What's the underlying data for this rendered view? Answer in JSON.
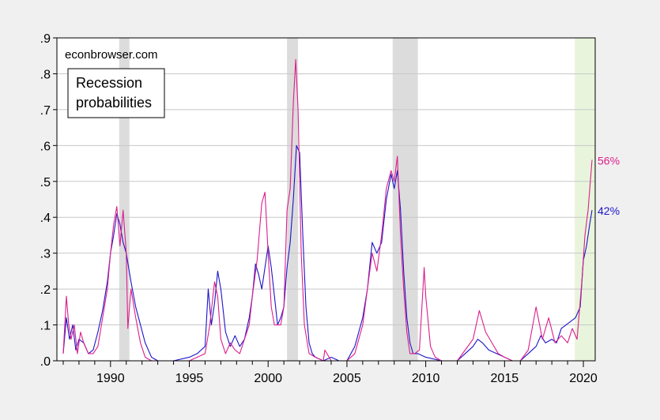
{
  "chart_data": {
    "type": "line",
    "title": "",
    "xlabel": "",
    "ylabel": "",
    "xlim": [
      1986.6,
      2020.75
    ],
    "ylim": [
      0,
      0.9
    ],
    "y_ticks": [
      ".0",
      ".1",
      ".2",
      ".3",
      ".4",
      ".5",
      ".6",
      ".7",
      ".8",
      ".9"
    ],
    "y_tick_values": [
      0,
      0.1,
      0.2,
      0.3,
      0.4,
      0.5,
      0.6,
      0.7,
      0.8,
      0.9
    ],
    "x_ticks": [
      "1990",
      "1995",
      "2000",
      "2005",
      "2010",
      "2015",
      "2020"
    ],
    "x_tick_values": [
      1990,
      1995,
      2000,
      2005,
      2010,
      2015,
      2020
    ],
    "grid": "horizontal",
    "watermark": "econbrowser.com",
    "legend_box": [
      "Recession",
      "probabilities"
    ],
    "recession_shading": [
      [
        1990.55,
        1991.2
      ],
      [
        2001.2,
        2001.9
      ],
      [
        2007.9,
        2009.5
      ]
    ],
    "forecast_shading": [
      2019.45,
      2020.75
    ],
    "colors": {
      "series_a": "#1c14c8",
      "series_b": "#dc1e8c",
      "recession": "#dcdcdc",
      "forecast": "#e8f5dc"
    },
    "series": [
      {
        "color": "#1c14c8",
        "end_label": "42%",
        "x": [
          1987.0,
          1987.2,
          1987.4,
          1987.6,
          1987.8,
          1988.0,
          1988.3,
          1988.6,
          1988.9,
          1989.2,
          1989.5,
          1989.8,
          1990.0,
          1990.2,
          1990.4,
          1990.6,
          1990.8,
          1991.0,
          1991.3,
          1991.6,
          1991.9,
          1992.2,
          1992.6,
          1993.0,
          1994.0,
          1995.0,
          1995.5,
          1996.0,
          1996.2,
          1996.4,
          1996.6,
          1996.8,
          1997.0,
          1997.3,
          1997.6,
          1997.9,
          1998.2,
          1998.5,
          1998.8,
          1999.0,
          1999.2,
          1999.4,
          1999.6,
          1999.8,
          2000.0,
          2000.2,
          2000.4,
          2000.6,
          2000.8,
          2001.0,
          2001.2,
          2001.4,
          2001.6,
          2001.8,
          2002.0,
          2002.2,
          2002.4,
          2002.6,
          2002.8,
          2003.0,
          2003.5,
          2004.0,
          2004.5,
          2005.0,
          2005.5,
          2006.0,
          2006.3,
          2006.6,
          2006.9,
          2007.2,
          2007.5,
          2007.8,
          2008.0,
          2008.2,
          2008.4,
          2008.6,
          2008.8,
          2009.0,
          2009.2,
          2009.5,
          2010.0,
          2011.0,
          2012.0,
          2012.5,
          2013.0,
          2013.3,
          2013.6,
          2014.0,
          2014.5,
          2015.0,
          2015.5,
          2016.0,
          2016.5,
          2017.0,
          2017.3,
          2017.6,
          2018.0,
          2018.3,
          2018.6,
          2018.9,
          2019.2,
          2019.5,
          2019.8,
          2020.0,
          2020.2,
          2020.4,
          2020.55
        ],
        "y": [
          0.02,
          0.12,
          0.06,
          0.1,
          0.03,
          0.06,
          0.05,
          0.02,
          0.03,
          0.08,
          0.14,
          0.22,
          0.3,
          0.35,
          0.41,
          0.38,
          0.33,
          0.3,
          0.22,
          0.15,
          0.1,
          0.05,
          0.01,
          0.0,
          0.0,
          0.01,
          0.02,
          0.04,
          0.2,
          0.1,
          0.16,
          0.25,
          0.2,
          0.08,
          0.04,
          0.07,
          0.04,
          0.06,
          0.12,
          0.18,
          0.27,
          0.24,
          0.2,
          0.26,
          0.32,
          0.26,
          0.18,
          0.1,
          0.12,
          0.15,
          0.26,
          0.33,
          0.45,
          0.6,
          0.58,
          0.35,
          0.15,
          0.05,
          0.02,
          0.01,
          0.0,
          0.01,
          0.0,
          0.0,
          0.04,
          0.12,
          0.2,
          0.33,
          0.3,
          0.33,
          0.45,
          0.52,
          0.48,
          0.53,
          0.42,
          0.25,
          0.12,
          0.05,
          0.02,
          0.02,
          0.01,
          0.0,
          0.0,
          0.02,
          0.04,
          0.06,
          0.05,
          0.03,
          0.02,
          0.01,
          0.0,
          0.0,
          0.02,
          0.04,
          0.07,
          0.05,
          0.06,
          0.05,
          0.09,
          0.1,
          0.11,
          0.12,
          0.15,
          0.28,
          0.32,
          0.38,
          0.42
        ]
      },
      {
        "color": "#dc1e8c",
        "end_label": "56%",
        "x": [
          1987.0,
          1987.2,
          1987.35,
          1987.5,
          1987.7,
          1987.9,
          1988.1,
          1988.3,
          1988.6,
          1988.9,
          1989.2,
          1989.5,
          1989.8,
          1990.0,
          1990.2,
          1990.4,
          1990.6,
          1990.8,
          1991.0,
          1991.1,
          1991.3,
          1991.6,
          1991.9,
          1992.2,
          1992.6,
          1993.0,
          1994.0,
          1995.0,
          1995.5,
          1996.0,
          1996.3,
          1996.6,
          1996.8,
          1997.0,
          1997.3,
          1997.6,
          1997.9,
          1998.2,
          1998.5,
          1998.8,
          1999.0,
          1999.3,
          1999.6,
          1999.8,
          2000.0,
          2000.2,
          2000.4,
          2000.6,
          2000.8,
          2001.0,
          2001.2,
          2001.4,
          2001.6,
          2001.75,
          2001.9,
          2002.1,
          2002.3,
          2002.6,
          2003.0,
          2003.5,
          2003.6,
          2004.0,
          2005.0,
          2005.5,
          2006.0,
          2006.3,
          2006.6,
          2006.9,
          2007.2,
          2007.5,
          2007.8,
          2008.0,
          2008.2,
          2008.4,
          2008.6,
          2008.8,
          2009.0,
          2009.3,
          2009.6,
          2009.9,
          2010.0,
          2010.3,
          2010.6,
          2011.0,
          2012.0,
          2012.5,
          2013.0,
          2013.4,
          2013.8,
          2014.2,
          2014.6,
          2015.0,
          2015.5,
          2016.0,
          2016.5,
          2017.0,
          2017.4,
          2017.8,
          2018.2,
          2018.6,
          2019.0,
          2019.3,
          2019.6,
          2019.9,
          2020.1,
          2020.3,
          2020.55
        ],
        "y": [
          0.02,
          0.18,
          0.1,
          0.06,
          0.1,
          0.02,
          0.08,
          0.05,
          0.02,
          0.02,
          0.04,
          0.12,
          0.2,
          0.3,
          0.38,
          0.43,
          0.32,
          0.42,
          0.3,
          0.09,
          0.2,
          0.12,
          0.05,
          0.01,
          0.0,
          0.0,
          0.0,
          0.0,
          0.01,
          0.02,
          0.1,
          0.22,
          0.18,
          0.06,
          0.02,
          0.05,
          0.03,
          0.02,
          0.06,
          0.1,
          0.18,
          0.28,
          0.44,
          0.47,
          0.3,
          0.15,
          0.1,
          0.1,
          0.1,
          0.15,
          0.42,
          0.48,
          0.72,
          0.84,
          0.7,
          0.3,
          0.1,
          0.02,
          0.01,
          0.0,
          0.03,
          0.0,
          0.0,
          0.02,
          0.1,
          0.2,
          0.3,
          0.25,
          0.35,
          0.48,
          0.53,
          0.5,
          0.57,
          0.35,
          0.2,
          0.08,
          0.02,
          0.02,
          0.03,
          0.26,
          0.18,
          0.04,
          0.01,
          0.0,
          0.0,
          0.03,
          0.06,
          0.14,
          0.08,
          0.05,
          0.02,
          0.01,
          0.0,
          0.0,
          0.03,
          0.15,
          0.06,
          0.12,
          0.05,
          0.07,
          0.05,
          0.09,
          0.06,
          0.22,
          0.35,
          0.42,
          0.56
        ]
      }
    ]
  }
}
